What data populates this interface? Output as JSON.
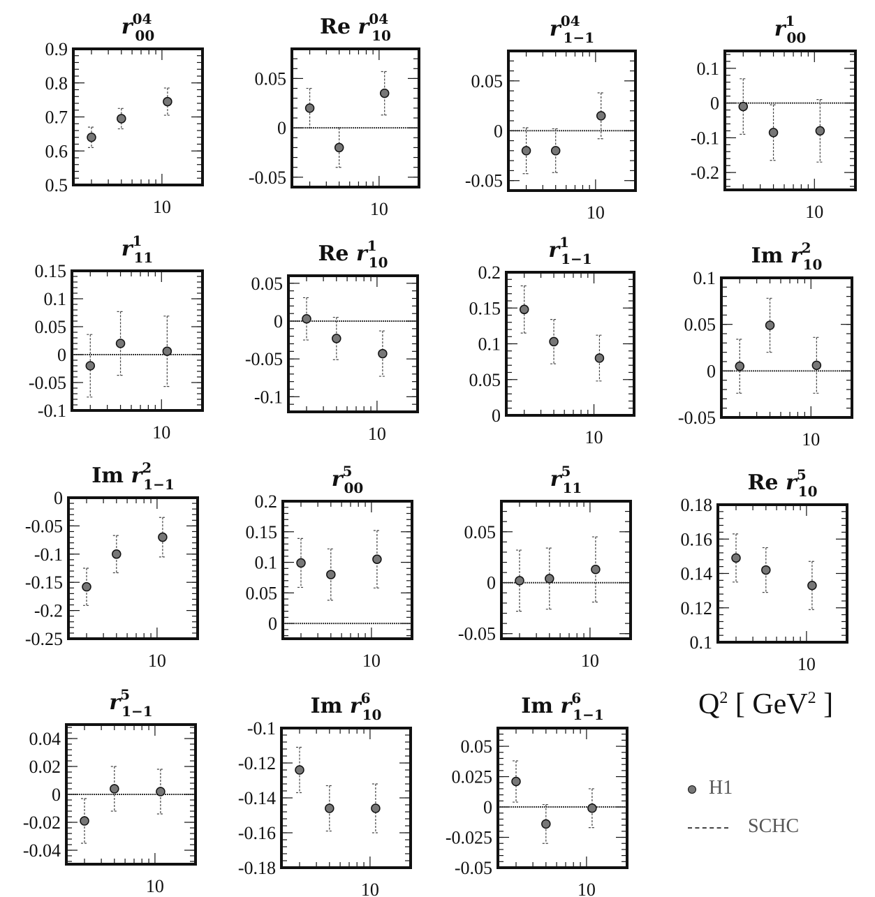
{
  "x_axis_label": "Q",
  "x_axis_unit": "[ GeV",
  "legend": [
    {
      "label": "H1",
      "marker": "point"
    },
    {
      "label": "SCHC",
      "marker": "line"
    }
  ],
  "chart_data": [
    {
      "type": "scatter",
      "title": {
        "pre": "",
        "sym": "r",
        "sup": "04",
        "sub": "00"
      },
      "xticklabel": "10",
      "yticks": [
        "0.5",
        "0.6",
        "0.7",
        "0.8",
        "0.9"
      ],
      "ylim": [
        0.5,
        0.9
      ],
      "ref": null,
      "points": [
        {
          "x": 3.0,
          "y": 0.64,
          "err": 0.03
        },
        {
          "x": 5.0,
          "y": 0.695,
          "err": 0.03
        },
        {
          "x": 11.0,
          "y": 0.745,
          "err": 0.04
        }
      ]
    },
    {
      "type": "scatter",
      "title": {
        "pre": "Re",
        "sym": "r",
        "sup": "04",
        "sub": "10"
      },
      "xticklabel": "10",
      "yticks": [
        "-0.05",
        "0",
        "0.05"
      ],
      "ylim": [
        -0.06,
        0.08
      ],
      "ref": 0,
      "points": [
        {
          "x": 3.0,
          "y": 0.02,
          "err": 0.02
        },
        {
          "x": 5.0,
          "y": -0.02,
          "err": 0.02
        },
        {
          "x": 11.0,
          "y": 0.035,
          "err": 0.022
        }
      ]
    },
    {
      "type": "scatter",
      "title": {
        "pre": "",
        "sym": "r",
        "sup": "04",
        "sub": "1−1"
      },
      "xticklabel": "10",
      "yticks": [
        "-0.05",
        "0",
        "0.05"
      ],
      "ylim": [
        -0.06,
        0.08
      ],
      "ref": 0,
      "points": [
        {
          "x": 3.0,
          "y": -0.02,
          "err": 0.023
        },
        {
          "x": 5.0,
          "y": -0.02,
          "err": 0.022
        },
        {
          "x": 11.0,
          "y": 0.015,
          "err": 0.023
        }
      ]
    },
    {
      "type": "scatter",
      "title": {
        "pre": "",
        "sym": "r",
        "sup": "1",
        "sub": "00"
      },
      "xticklabel": "10",
      "yticks": [
        "-0.2",
        "-0.1",
        "0",
        "0.1"
      ],
      "ylim": [
        -0.25,
        0.15
      ],
      "ref": 0,
      "points": [
        {
          "x": 3.0,
          "y": -0.01,
          "err": 0.08
        },
        {
          "x": 5.0,
          "y": -0.085,
          "err": 0.08
        },
        {
          "x": 11.0,
          "y": -0.08,
          "err": 0.09
        }
      ]
    },
    {
      "type": "scatter",
      "title": {
        "pre": "",
        "sym": "r",
        "sup": "1",
        "sub": "11"
      },
      "xticklabel": "10",
      "yticks": [
        "-0.1",
        "-0.05",
        "0",
        "0.05",
        "0.1",
        "0.15"
      ],
      "ylim": [
        -0.1,
        0.15
      ],
      "ref": 0,
      "points": [
        {
          "x": 3.0,
          "y": -0.02,
          "err": 0.056
        },
        {
          "x": 5.0,
          "y": 0.02,
          "err": 0.057
        },
        {
          "x": 11.0,
          "y": 0.006,
          "err": 0.063
        }
      ]
    },
    {
      "type": "scatter",
      "title": {
        "pre": "Re",
        "sym": "r",
        "sup": "1",
        "sub": "10"
      },
      "xticklabel": "10",
      "yticks": [
        "-0.1",
        "-0.05",
        "0",
        "0.05"
      ],
      "ylim": [
        -0.12,
        0.06
      ],
      "ref": 0,
      "points": [
        {
          "x": 3.0,
          "y": 0.003,
          "err": 0.028
        },
        {
          "x": 5.0,
          "y": -0.023,
          "err": 0.028
        },
        {
          "x": 11.0,
          "y": -0.043,
          "err": 0.03
        }
      ]
    },
    {
      "type": "scatter",
      "title": {
        "pre": "",
        "sym": "r",
        "sup": "1",
        "sub": "1−1"
      },
      "xticklabel": "10",
      "yticks": [
        "0",
        "0.05",
        "0.1",
        "0.15",
        "0.2"
      ],
      "ylim": [
        0,
        0.2
      ],
      "ref": null,
      "points": [
        {
          "x": 3.0,
          "y": 0.148,
          "err": 0.033
        },
        {
          "x": 5.0,
          "y": 0.103,
          "err": 0.031
        },
        {
          "x": 11.0,
          "y": 0.08,
          "err": 0.032
        }
      ]
    },
    {
      "type": "scatter",
      "title": {
        "pre": "Im",
        "sym": "r",
        "sup": "2",
        "sub": "10"
      },
      "xticklabel": "10",
      "yticks": [
        "-0.05",
        "0",
        "0.05",
        "0.1"
      ],
      "ylim": [
        -0.05,
        0.1
      ],
      "ref": 0,
      "points": [
        {
          "x": 3.0,
          "y": 0.005,
          "err": 0.029
        },
        {
          "x": 5.0,
          "y": 0.049,
          "err": 0.029
        },
        {
          "x": 11.0,
          "y": 0.006,
          "err": 0.03
        }
      ]
    },
    {
      "type": "scatter",
      "title": {
        "pre": "Im",
        "sym": "r",
        "sup": "2",
        "sub": "1−1"
      },
      "xticklabel": "10",
      "yticks": [
        "-0.25",
        "-0.2",
        "-0.15",
        "-0.1",
        "-0.05",
        "0"
      ],
      "ylim": [
        -0.25,
        0
      ],
      "ref": null,
      "points": [
        {
          "x": 3.0,
          "y": -0.158,
          "err": 0.033
        },
        {
          "x": 5.0,
          "y": -0.1,
          "err": 0.033
        },
        {
          "x": 11.0,
          "y": -0.07,
          "err": 0.035
        }
      ]
    },
    {
      "type": "scatter",
      "title": {
        "pre": "",
        "sym": "r",
        "sup": "5",
        "sub": "00"
      },
      "xticklabel": "10",
      "yticks": [
        "0",
        "0.05",
        "0.1",
        "0.15",
        "0.2"
      ],
      "ylim": [
        -0.025,
        0.2
      ],
      "ref": 0,
      "points": [
        {
          "x": 3.0,
          "y": 0.099,
          "err": 0.04
        },
        {
          "x": 5.0,
          "y": 0.08,
          "err": 0.042
        },
        {
          "x": 11.0,
          "y": 0.105,
          "err": 0.047
        }
      ]
    },
    {
      "type": "scatter",
      "title": {
        "pre": "",
        "sym": "r",
        "sup": "5",
        "sub": "11"
      },
      "xticklabel": "10",
      "yticks": [
        "-0.05",
        "0",
        "0.05"
      ],
      "ylim": [
        -0.055,
        0.08
      ],
      "ref": 0,
      "points": [
        {
          "x": 3.0,
          "y": 0.002,
          "err": 0.03
        },
        {
          "x": 5.0,
          "y": 0.004,
          "err": 0.03
        },
        {
          "x": 11.0,
          "y": 0.013,
          "err": 0.032
        }
      ]
    },
    {
      "type": "scatter",
      "title": {
        "pre": "Re",
        "sym": "r",
        "sup": "5",
        "sub": "10"
      },
      "xticklabel": "10",
      "yticks": [
        "0.1",
        "0.12",
        "0.14",
        "0.16",
        "0.18"
      ],
      "ylim": [
        0.1,
        0.18
      ],
      "ref": null,
      "points": [
        {
          "x": 3.0,
          "y": 0.149,
          "err": 0.014
        },
        {
          "x": 5.0,
          "y": 0.142,
          "err": 0.013
        },
        {
          "x": 11.0,
          "y": 0.133,
          "err": 0.014
        }
      ]
    },
    {
      "type": "scatter",
      "title": {
        "pre": "",
        "sym": "r",
        "sup": "5",
        "sub": "1−1"
      },
      "xticklabel": "10",
      "yticks": [
        "-0.04",
        "-0.02",
        "0",
        "0.02",
        "0.04"
      ],
      "ylim": [
        -0.05,
        0.05
      ],
      "ref": 0,
      "points": [
        {
          "x": 3.0,
          "y": -0.019,
          "err": 0.016
        },
        {
          "x": 5.0,
          "y": 0.004,
          "err": 0.016
        },
        {
          "x": 11.0,
          "y": 0.002,
          "err": 0.016
        }
      ]
    },
    {
      "type": "scatter",
      "title": {
        "pre": "Im",
        "sym": "r",
        "sup": "6",
        "sub": "10"
      },
      "xticklabel": "10",
      "yticks": [
        "-0.18",
        "-0.16",
        "-0.14",
        "-0.12",
        "-0.1"
      ],
      "ylim": [
        -0.18,
        -0.1
      ],
      "ref": null,
      "points": [
        {
          "x": 3.0,
          "y": -0.124,
          "err": 0.013
        },
        {
          "x": 5.0,
          "y": -0.146,
          "err": 0.013
        },
        {
          "x": 11.0,
          "y": -0.146,
          "err": 0.014
        }
      ]
    },
    {
      "type": "scatter",
      "title": {
        "pre": "Im",
        "sym": "r",
        "sup": "6",
        "sub": "1−1"
      },
      "xticklabel": "10",
      "yticks": [
        "-0.05",
        "-0.025",
        "0",
        "0.025",
        "0.05"
      ],
      "ylim": [
        -0.05,
        0.065
      ],
      "ref": 0,
      "points": [
        {
          "x": 3.0,
          "y": 0.021,
          "err": 0.017
        },
        {
          "x": 5.0,
          "y": -0.014,
          "err": 0.016
        },
        {
          "x": 11.0,
          "y": -0.001,
          "err": 0.016
        }
      ]
    }
  ]
}
